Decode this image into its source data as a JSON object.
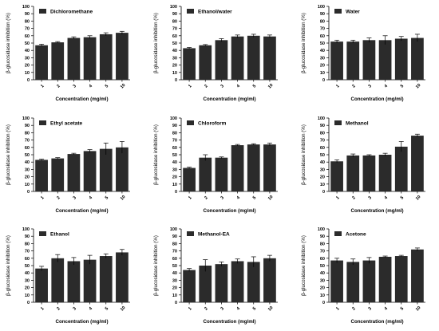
{
  "chart_data": [
    {
      "type": "bar",
      "legend": "Dichloromethane",
      "categories": [
        "1",
        "2",
        "3",
        "4",
        "5",
        "10"
      ],
      "values": [
        47,
        51,
        57,
        58,
        62,
        64
      ],
      "errors": [
        1.5,
        1,
        1.5,
        2,
        2,
        2
      ],
      "xlabel": "Concentration (mg/ml)",
      "ylabel": "β-glucosidase inhibition (%)",
      "ylim": [
        0,
        100
      ],
      "yticks": [
        0,
        10,
        20,
        30,
        40,
        50,
        60,
        70,
        80,
        90,
        100
      ],
      "legend_position": "top-left"
    },
    {
      "type": "bar",
      "legend": "Ethanol/water",
      "categories": [
        "1",
        "2",
        "3",
        "4",
        "5",
        "10"
      ],
      "values": [
        43,
        47,
        54,
        59,
        60,
        59
      ],
      "errors": [
        1,
        1,
        2,
        2,
        2,
        2
      ],
      "xlabel": "Concentration (mg/ml)",
      "ylabel": "β-glucosidase inhibition (%)",
      "ylim": [
        0,
        100
      ],
      "yticks": [
        0,
        10,
        20,
        30,
        40,
        50,
        60,
        70,
        80,
        90,
        100
      ],
      "legend_position": "top-left"
    },
    {
      "type": "bar",
      "legend": "Water",
      "categories": [
        "1",
        "2",
        "3",
        "4",
        "5",
        "10"
      ],
      "values": [
        52,
        52,
        54,
        54,
        56,
        57
      ],
      "errors": [
        2,
        2,
        3,
        6,
        3,
        5
      ],
      "xlabel": "Concentration (mg/ml)",
      "ylabel": "β-glucosidase inhibition (%)",
      "ylim": [
        0,
        100
      ],
      "yticks": [
        0,
        10,
        20,
        30,
        40,
        50,
        60,
        70,
        80,
        90,
        100
      ],
      "legend_position": "top-left"
    },
    {
      "type": "bar",
      "legend": "Ethyl acetate",
      "categories": [
        "1",
        "2",
        "3",
        "4",
        "5",
        "10"
      ],
      "values": [
        43,
        45,
        51,
        55,
        58,
        60
      ],
      "errors": [
        1,
        1,
        1,
        2,
        8,
        8
      ],
      "xlabel": "Concentration (mg/ml)",
      "ylabel": "β-glucosidase inhibition (%)",
      "ylim": [
        0,
        100
      ],
      "yticks": [
        0,
        10,
        20,
        30,
        40,
        50,
        60,
        70,
        80,
        90,
        100
      ],
      "legend_position": "top-left"
    },
    {
      "type": "bar",
      "legend": "Chloroform",
      "categories": [
        "1",
        "2",
        "3",
        "4",
        "5",
        "10"
      ],
      "values": [
        32,
        46,
        46,
        63,
        64,
        64
      ],
      "errors": [
        1,
        4,
        1,
        1,
        1,
        2
      ],
      "xlabel": "Concentration (mg/ml)",
      "ylabel": "β-glucosidase inhibition (%)",
      "ylim": [
        0,
        100
      ],
      "yticks": [
        0,
        10,
        20,
        30,
        40,
        50,
        60,
        70,
        80,
        90,
        100
      ],
      "legend_position": "top-left"
    },
    {
      "type": "bar",
      "legend": "Methanol",
      "categories": [
        "1",
        "2",
        "3",
        "4",
        "5",
        "10"
      ],
      "values": [
        41,
        49,
        49,
        50,
        61,
        76
      ],
      "errors": [
        2,
        2,
        1,
        2,
        7,
        2
      ],
      "xlabel": "Concentration (mg/ml)",
      "ylabel": "β-glucosidase inhibition (%)",
      "ylim": [
        0,
        100
      ],
      "yticks": [
        0,
        10,
        20,
        30,
        40,
        50,
        60,
        70,
        80,
        90,
        100
      ],
      "legend_position": "top-left"
    },
    {
      "type": "bar",
      "legend": "Ethanol",
      "categories": [
        "1",
        "2",
        "3",
        "4",
        "5",
        "10"
      ],
      "values": [
        46,
        60,
        56,
        58,
        63,
        68
      ],
      "errors": [
        3,
        5,
        5,
        6,
        3,
        4
      ],
      "xlabel": "Concentration (mg/ml)",
      "ylabel": "β-glucosidase inhibition (%)",
      "ylim": [
        0,
        100
      ],
      "yticks": [
        0,
        10,
        20,
        30,
        40,
        50,
        60,
        70,
        80,
        90,
        100
      ],
      "legend_position": "top-left"
    },
    {
      "type": "bar",
      "legend": "Methanol-EA",
      "categories": [
        "1",
        "2",
        "3",
        "4",
        "5",
        "10"
      ],
      "values": [
        44,
        50,
        52,
        56,
        55,
        60
      ],
      "errors": [
        2,
        8,
        3,
        3,
        7,
        4
      ],
      "xlabel": "Concentration (mg/ml)",
      "ylabel": "β-glucosidase inhibition (%)",
      "ylim": [
        0,
        100
      ],
      "yticks": [
        0,
        10,
        20,
        30,
        40,
        50,
        60,
        70,
        80,
        90,
        100
      ],
      "legend_position": "top-left"
    },
    {
      "type": "bar",
      "legend": "Acetone",
      "categories": [
        "1",
        "2",
        "3",
        "4",
        "5",
        "10"
      ],
      "values": [
        57,
        55,
        57,
        62,
        63,
        72
      ],
      "errors": [
        3,
        4,
        4,
        1,
        1,
        2
      ],
      "xlabel": "Concentration (mg/ml)",
      "ylabel": "β-glucosidase inhibition (%)",
      "ylim": [
        0,
        100
      ],
      "yticks": [
        0,
        10,
        20,
        30,
        40,
        50,
        60,
        70,
        80,
        90,
        100
      ],
      "legend_position": "top-left"
    }
  ],
  "colors": {
    "bar": "#2b2b2b",
    "axis": "#000000"
  }
}
